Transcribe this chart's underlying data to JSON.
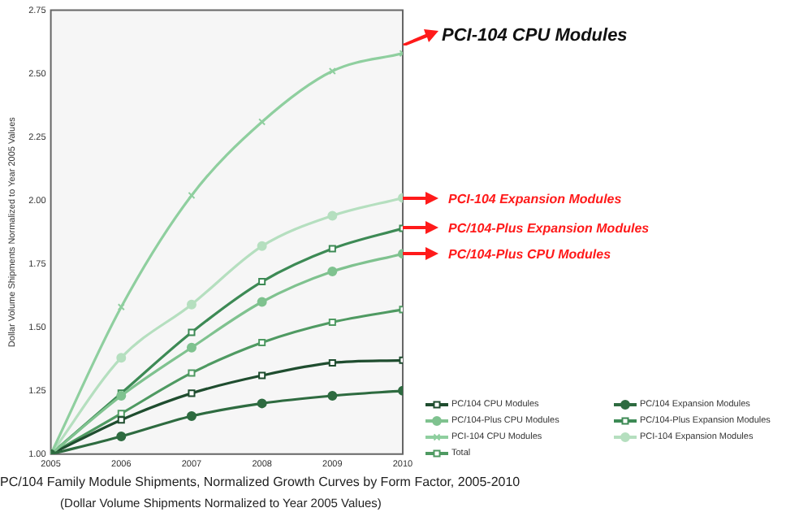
{
  "chart_data": {
    "type": "line",
    "title": "PC/104 Family Module Shipments, Normalized Growth Curves by Form Factor, 2005-2010",
    "subtitle": "(Dollar Volume Shipments Normalized to Year 2005 Values)",
    "ylabel": "Dollar Volume Shipments Normalized to Year 2005 Values",
    "x": [
      2005,
      2006,
      2007,
      2008,
      2009,
      2010
    ],
    "xlim": [
      2005,
      2010
    ],
    "xticks": [
      2005,
      2006,
      2007,
      2008,
      2009,
      2010
    ],
    "ylim": [
      1,
      2.75
    ],
    "yticks": [
      {
        "value": 1,
        "label": "1.00"
      },
      {
        "value": 1.25,
        "label": "1.25"
      },
      {
        "value": 1.5,
        "label": "1.50"
      },
      {
        "value": 1.75,
        "label": "1.75"
      },
      {
        "value": 2,
        "label": "2.00"
      },
      {
        "value": 2.25,
        "label": "2.25"
      },
      {
        "value": 2.5,
        "label": "2.50"
      },
      {
        "value": 2.75,
        "label": "2.75"
      }
    ],
    "grid": false,
    "legend": "bottom right",
    "series": [
      {
        "name": "PC/104 CPU Modules",
        "color": "#1f4d2f",
        "marker": "square",
        "values": [
          1,
          1.135,
          1.24,
          1.31,
          1.36,
          1.37
        ]
      },
      {
        "name": "PC/104 Expansion Modules",
        "color": "#2e6b40",
        "marker": "circle",
        "values": [
          1,
          1.07,
          1.15,
          1.2,
          1.23,
          1.25
        ]
      },
      {
        "name": "PC/104-Plus CPU Modules",
        "color": "#7fc28f",
        "marker": "circle",
        "values": [
          1,
          1.23,
          1.42,
          1.6,
          1.72,
          1.79
        ]
      },
      {
        "name": "PC/104-Plus Expansion Modules",
        "color": "#3d8a55",
        "marker": "square",
        "values": [
          1,
          1.24,
          1.48,
          1.68,
          1.81,
          1.89
        ]
      },
      {
        "name": "PCI-104 CPU Modules",
        "color": "#8fcf9f",
        "marker": "cross",
        "values": [
          1,
          1.58,
          2.02,
          2.31,
          2.51,
          2.58
        ]
      },
      {
        "name": "PCI-104 Expansion Modules",
        "color": "#b5dfbf",
        "marker": "circle",
        "values": [
          1,
          1.38,
          1.59,
          1.82,
          1.94,
          2.01
        ]
      },
      {
        "name": "Total",
        "color": "#4f9a62",
        "marker": "square",
        "values": [
          1,
          1.16,
          1.32,
          1.44,
          1.52,
          1.57
        ]
      }
    ],
    "annotations": [
      "PCI-104 CPU Modules",
      "PCI-104 Expansion Modules",
      "PC/104-Plus Expansion Modules",
      "PC/104-Plus CPU Modules"
    ]
  }
}
